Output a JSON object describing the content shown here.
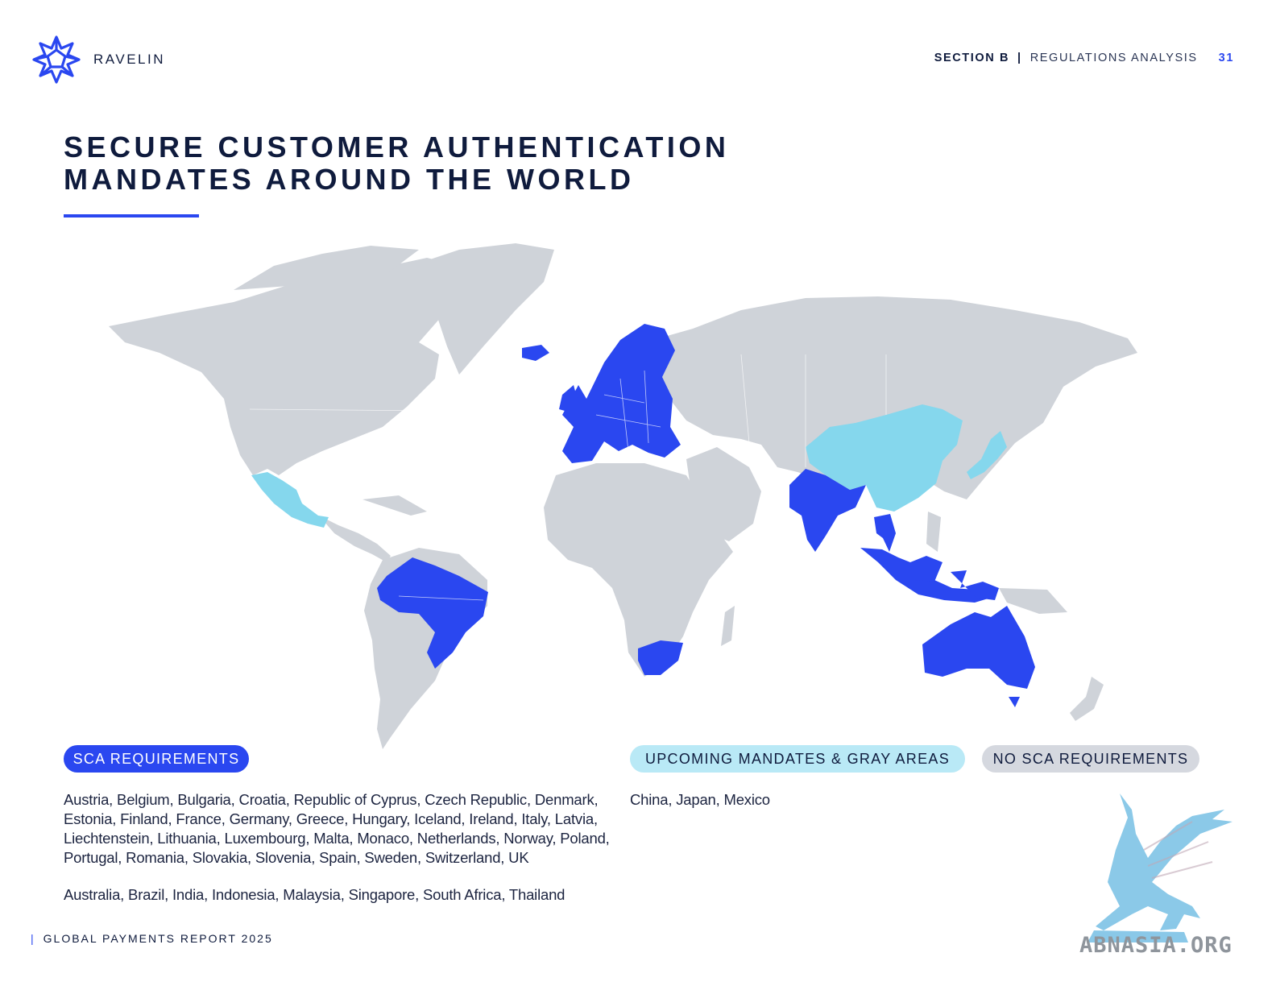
{
  "header": {
    "brand": "RAVELIN",
    "section_label": "SECTION B",
    "section_title": "REGULATIONS ANALYSIS",
    "page_number": "31"
  },
  "title": {
    "line1": "SECURE CUSTOMER AUTHENTICATION",
    "line2": "MANDATES AROUND THE WORLD"
  },
  "legend": {
    "sca": {
      "label": "SCA REQUIREMENTS",
      "color": "#2a47f0"
    },
    "upcoming": {
      "label": "UPCOMING MANDATES & GRAY AREAS",
      "color": "#85d7ed"
    },
    "none": {
      "label": "NO SCA REQUIREMENTS",
      "color": "#cfd3d9"
    }
  },
  "countries": {
    "sca_europe": "Austria, Belgium, Bulgaria, Croatia, Republic of Cyprus, Czech Republic, Denmark, Estonia, Finland, France, Germany, Greece, Hungary, Iceland, Ireland, Italy, Latvia, Liechtenstein, Lithuania, Luxembourg, Malta, Monaco, Netherlands, Norway, Poland, Portugal, Romania, Slovakia, Slovenia, Spain, Sweden, Switzerland, UK",
    "sca_other": "Australia, Brazil, India, Indonesia, Malaysia, Singapore, South Africa, Thailand",
    "upcoming": "China, Japan, Mexico"
  },
  "footer": {
    "text": "GLOBAL PAYMENTS REPORT 2025"
  },
  "watermark": {
    "text": "ABNASIA.ORG"
  }
}
